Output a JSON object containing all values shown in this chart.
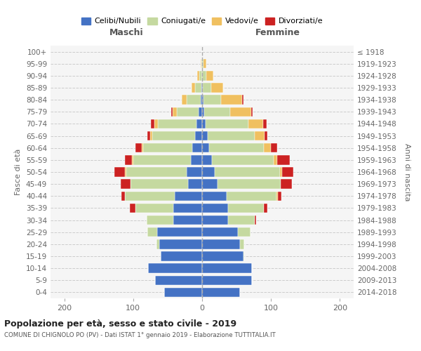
{
  "age_groups": [
    "0-4",
    "5-9",
    "10-14",
    "15-19",
    "20-24",
    "25-29",
    "30-34",
    "35-39",
    "40-44",
    "45-49",
    "50-54",
    "55-59",
    "60-64",
    "65-69",
    "70-74",
    "75-79",
    "80-84",
    "85-89",
    "90-94",
    "95-99",
    "100+"
  ],
  "birth_years": [
    "2014-2018",
    "2009-2013",
    "2004-2008",
    "1999-2003",
    "1994-1998",
    "1989-1993",
    "1984-1988",
    "1979-1983",
    "1974-1978",
    "1969-1973",
    "1964-1968",
    "1959-1963",
    "1954-1958",
    "1949-1953",
    "1944-1948",
    "1939-1943",
    "1934-1938",
    "1929-1933",
    "1924-1928",
    "1919-1923",
    "≤ 1918"
  ],
  "males_celibi": [
    55,
    68,
    78,
    60,
    62,
    65,
    42,
    42,
    40,
    20,
    22,
    16,
    14,
    10,
    8,
    5,
    2,
    1,
    0,
    0,
    0
  ],
  "males_coniugati": [
    0,
    0,
    0,
    0,
    4,
    14,
    38,
    55,
    72,
    84,
    88,
    84,
    72,
    62,
    56,
    32,
    20,
    9,
    4,
    1,
    0
  ],
  "males_vedovi": [
    0,
    0,
    0,
    0,
    0,
    0,
    0,
    0,
    0,
    0,
    2,
    2,
    2,
    3,
    5,
    6,
    8,
    5,
    3,
    1,
    0
  ],
  "males_divorziati": [
    0,
    0,
    0,
    0,
    0,
    0,
    0,
    8,
    5,
    14,
    15,
    10,
    9,
    4,
    5,
    2,
    0,
    0,
    0,
    0,
    0
  ],
  "females_nubili": [
    55,
    72,
    72,
    60,
    55,
    52,
    38,
    38,
    36,
    22,
    18,
    14,
    10,
    8,
    5,
    3,
    2,
    1,
    0,
    0,
    0
  ],
  "females_coniugate": [
    0,
    0,
    0,
    1,
    6,
    18,
    38,
    52,
    72,
    92,
    95,
    90,
    80,
    68,
    62,
    38,
    26,
    12,
    6,
    2,
    0
  ],
  "females_vedove": [
    0,
    0,
    0,
    0,
    0,
    0,
    0,
    0,
    2,
    0,
    3,
    5,
    10,
    15,
    22,
    30,
    30,
    18,
    10,
    4,
    0
  ],
  "females_divorziate": [
    0,
    0,
    0,
    0,
    0,
    0,
    2,
    5,
    5,
    16,
    16,
    18,
    9,
    4,
    5,
    2,
    2,
    0,
    0,
    0,
    0
  ],
  "color_celibi": "#4472c4",
  "color_coniugati": "#c5d9a0",
  "color_vedovi": "#f0c060",
  "color_divorziati": "#cc2222",
  "xlim": 220,
  "title": "Popolazione per età, sesso e stato civile - 2019",
  "subtitle": "COMUNE DI CHIGNOLO PO (PV) - Dati ISTAT 1° gennaio 2019 - Elaborazione TUTTITALIA.IT",
  "ylabel": "Fasce di età",
  "ylabel_right": "Anni di nascita",
  "label_maschi": "Maschi",
  "label_femmine": "Femmine",
  "legend_celibi": "Celibi/Nubili",
  "legend_coniugati": "Coniugati/e",
  "legend_vedovi": "Vedovi/e",
  "legend_divorziati": "Divorziati/e"
}
